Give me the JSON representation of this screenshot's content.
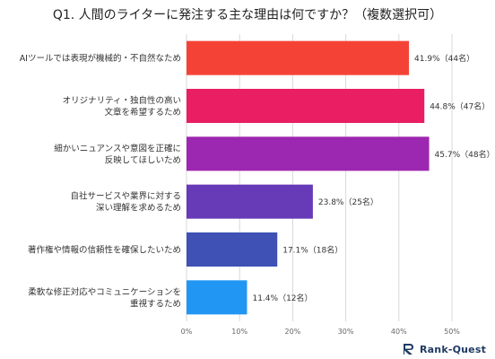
{
  "chart_data": {
    "type": "bar",
    "orientation": "horizontal",
    "title": "Q1. 人間のライターに発注する主な理由は何ですか？（複数選択可）",
    "categories": [
      [
        "AIツールでは表現が機械的・不自然なため"
      ],
      [
        "オリジナリティ・独自性の高い",
        "文章を希望するため"
      ],
      [
        "細かいニュアンスや意図を正確に",
        "反映してほしいため"
      ],
      [
        "自社サービスや業界に対する",
        "深い理解を求めるため"
      ],
      [
        "著作権や情報の信頼性を確保したいため"
      ],
      [
        "柔軟な修正対応やコミュニケーションを",
        "重視するため"
      ]
    ],
    "values": [
      41.9,
      44.8,
      45.7,
      23.8,
      17.1,
      11.4
    ],
    "data_labels": [
      "41.9%（44名）",
      "44.8%（47名）",
      "45.7%（48名）",
      "23.8%（25名）",
      "17.1%（18名）",
      "11.4%（12名）"
    ],
    "colors": [
      "#f44336",
      "#e91e63",
      "#9c27b0",
      "#673ab7",
      "#3f51b5",
      "#2196f3"
    ],
    "xlim": [
      0,
      50
    ],
    "x_ticks": [
      0,
      10,
      20,
      30,
      40,
      50
    ],
    "x_tick_labels": [
      "0%",
      "10%",
      "20%",
      "30%",
      "40%",
      "50%"
    ],
    "grid": true,
    "legend": "none"
  },
  "logo": {
    "text": "Rank-Quest",
    "icon": "rank-quest-logo-icon"
  }
}
